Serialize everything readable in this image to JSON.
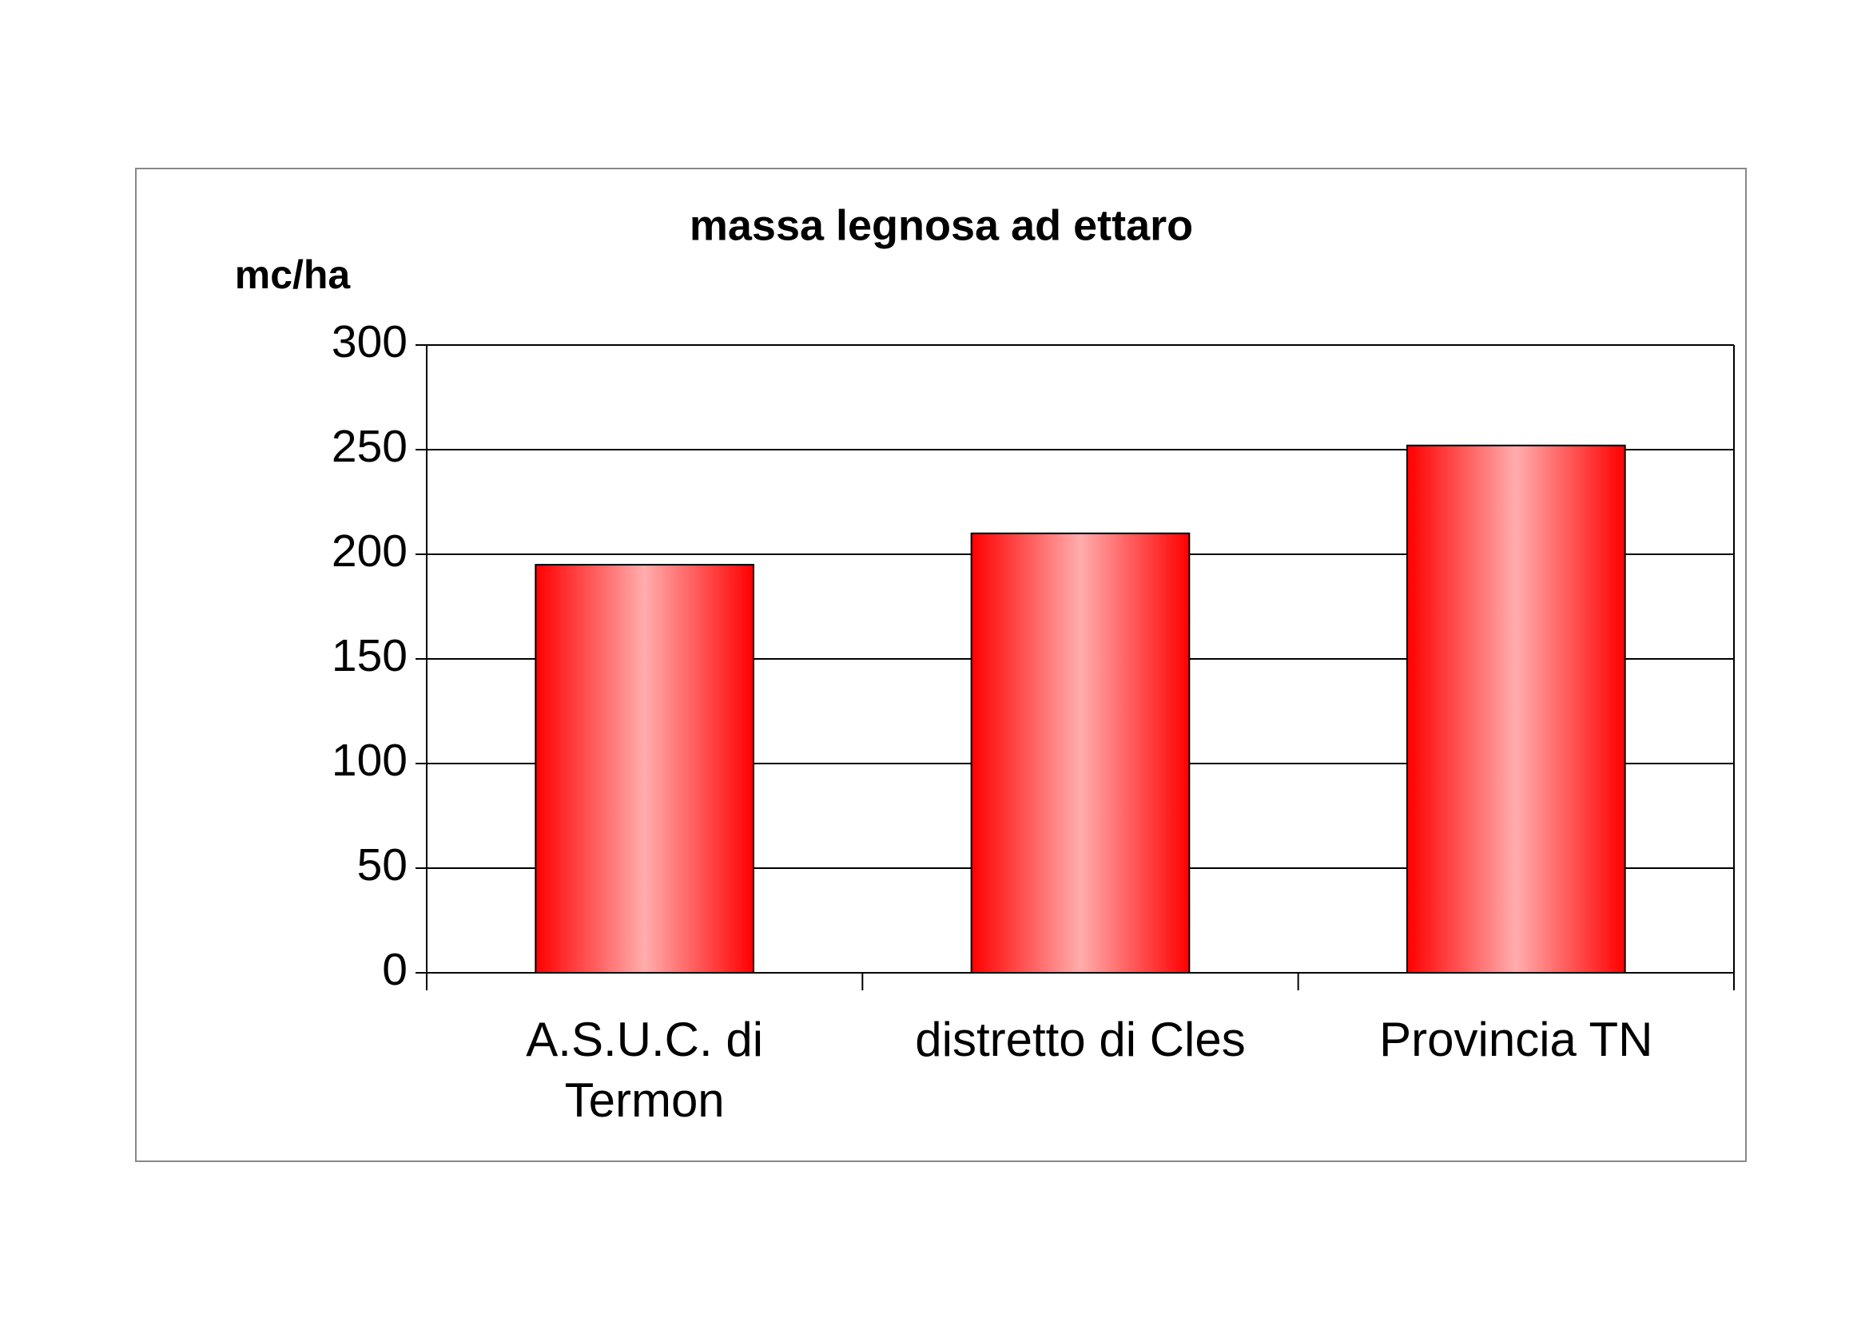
{
  "chart_data": {
    "type": "bar",
    "title": "massa legnosa ad ettaro",
    "y_label": "mc/ha",
    "categories": [
      "A.S.U.C. di Termon",
      "distretto di Cles",
      "Provincia TN"
    ],
    "values": [
      195,
      210,
      252
    ],
    "color": "#ff0000",
    "ylim": [
      0,
      300
    ],
    "yticks": [
      0,
      50,
      100,
      150,
      200,
      250,
      300
    ],
    "grid": true
  }
}
